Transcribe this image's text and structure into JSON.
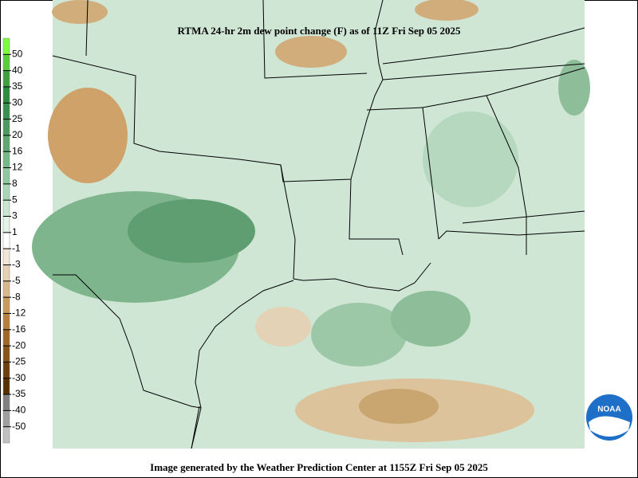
{
  "header": {
    "title": "RTMA 24-hr 2m dew point change (F) as of 11Z Fri Sep 05 2025"
  },
  "legend": {
    "boxes": [
      "#7cfc3c",
      "#5ccc3c",
      "#40a040",
      "#2e8b3e",
      "#3a9050",
      "#4c9a60",
      "#5fa873",
      "#76b888",
      "#90c8a0",
      "#aad6b8",
      "#c8e6d0",
      "#e4f2e8",
      "#ffffff",
      "#f2e6d8",
      "#e6d0b4",
      "#d8b88a",
      "#c99a5c",
      "#b88040",
      "#a06828",
      "#885418",
      "#70400c",
      "#583000",
      "#808080",
      "#a0a0a0",
      "#c0c0c0"
    ],
    "labels": [
      "50",
      "40",
      "35",
      "30",
      "25",
      "20",
      "16",
      "12",
      "8",
      "5",
      "3",
      "1",
      "-1",
      "-3",
      "-5",
      "-8",
      "-12",
      "-16",
      "-20",
      "-25",
      "-30",
      "-35",
      "-40",
      "-50"
    ]
  },
  "footer": {
    "text": "Image generated by the Weather Prediction Center at 1155Z Fri Sep 05 2025"
  },
  "logo": {
    "text": "NOAA"
  }
}
